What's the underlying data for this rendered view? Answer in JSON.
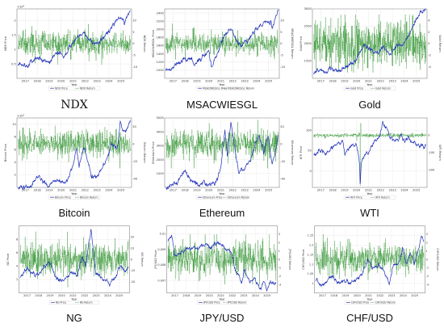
{
  "colors": {
    "price": "#1f2fb8",
    "return": "#1f8a1f",
    "grid": "#dcdcdc",
    "axis": "#444444"
  },
  "chart_data": [
    {
      "type": "line",
      "caption": "NDX",
      "caption_style": "serif",
      "xlabel": "Year",
      "ylabel_left": "NDX Price",
      "ylabel_right": "NDX Return",
      "x_ticks": [
        "2017",
        "2018",
        "2019",
        "2020",
        "2021",
        "2022",
        "2023",
        "2024",
        "2025"
      ],
      "xlim": [
        2016.3,
        2025.9
      ],
      "ylim_left": [
        0,
        2.4
      ],
      "ylim_right": [
        -15,
        15
      ],
      "yticks_left": [
        "0.5",
        "1",
        "1.5",
        "2"
      ],
      "yticks_right": [
        "-10",
        "-5",
        "0",
        "5",
        "10"
      ],
      "left_exponent": "×10⁴",
      "legend": [
        "NDX Price",
        "NDX Return"
      ],
      "price_anchors": [
        [
          2016.4,
          0.45
        ],
        [
          2017.0,
          0.5
        ],
        [
          2017.6,
          0.62
        ],
        [
          2018.1,
          0.7
        ],
        [
          2018.9,
          0.62
        ],
        [
          2019.5,
          0.78
        ],
        [
          2020.0,
          0.9
        ],
        [
          2020.2,
          0.75
        ],
        [
          2020.6,
          1.05
        ],
        [
          2021.0,
          1.28
        ],
        [
          2021.9,
          1.62
        ],
        [
          2022.3,
          1.35
        ],
        [
          2022.8,
          1.12
        ],
        [
          2023.3,
          1.32
        ],
        [
          2023.9,
          1.62
        ],
        [
          2024.5,
          1.95
        ],
        [
          2025.1,
          2.1
        ],
        [
          2025.3,
          1.85
        ],
        [
          2025.8,
          2.35
        ]
      ],
      "return_center": 0,
      "return_sigma": 1.6,
      "return_max": 9
    },
    {
      "type": "line",
      "caption": "MSACWIESGL",
      "caption_style": "sans",
      "xlabel": "Year",
      "ylabel_left": "MSACWIESGL Price",
      "ylabel_right": "MSACWIESGL Return",
      "x_ticks": [
        "2017",
        "2018",
        "2019",
        "2020",
        "2021",
        "2022",
        "2023",
        "2024",
        "2025"
      ],
      "xlim": [
        2016.3,
        2025.9
      ],
      "ylim_left": [
        800,
        2500
      ],
      "ylim_right": [
        -15,
        15
      ],
      "yticks_left": [
        "1000",
        "1200",
        "1400",
        "1600",
        "1800",
        "2000",
        "2200",
        "2400"
      ],
      "yticks_right": [
        "-10",
        "-5",
        "0",
        "5",
        "10"
      ],
      "legend": [
        "MSACWIESGL Price",
        "MSACWIESGL Return"
      ],
      "price_anchors": [
        [
          2016.4,
          1000
        ],
        [
          2017.0,
          1080
        ],
        [
          2017.9,
          1300
        ],
        [
          2018.3,
          1280
        ],
        [
          2018.9,
          1150
        ],
        [
          2019.5,
          1350
        ],
        [
          2020.0,
          1500
        ],
        [
          2020.2,
          1050
        ],
        [
          2020.7,
          1450
        ],
        [
          2021.0,
          1700
        ],
        [
          2021.9,
          2000
        ],
        [
          2022.4,
          1650
        ],
        [
          2022.8,
          1600
        ],
        [
          2023.4,
          1800
        ],
        [
          2023.9,
          1950
        ],
        [
          2024.6,
          2150
        ],
        [
          2025.2,
          2250
        ],
        [
          2025.3,
          2000
        ],
        [
          2025.8,
          2450
        ]
      ],
      "return_center": 0,
      "return_sigma": 1.3,
      "return_max": 9
    },
    {
      "type": "line",
      "caption": "Gold",
      "caption_style": "sans",
      "xlabel": "Year",
      "ylabel_left": "Gold Price",
      "ylabel_right": "Gold Return",
      "x_ticks": [
        "2017",
        "2018",
        "2019",
        "2020",
        "2021",
        "2022",
        "2023",
        "2024",
        "2025"
      ],
      "xlim": [
        2016.3,
        2025.9
      ],
      "ylim_left": [
        1000,
        3000
      ],
      "ylim_right": [
        -6,
        6
      ],
      "yticks_left": [
        "1500",
        "2000",
        "2500",
        "3000"
      ],
      "yticks_right": [
        "-4",
        "-2",
        "0",
        "2",
        "4"
      ],
      "legend": [
        "Gold Price",
        "Gold Return"
      ],
      "price_anchors": [
        [
          2016.4,
          1200
        ],
        [
          2017.0,
          1220
        ],
        [
          2017.8,
          1300
        ],
        [
          2018.6,
          1200
        ],
        [
          2019.4,
          1400
        ],
        [
          2020.0,
          1550
        ],
        [
          2020.6,
          2000
        ],
        [
          2021.0,
          1800
        ],
        [
          2021.8,
          1800
        ],
        [
          2022.3,
          1900
        ],
        [
          2022.8,
          1650
        ],
        [
          2023.4,
          1950
        ],
        [
          2023.9,
          2000
        ],
        [
          2024.4,
          2300
        ],
        [
          2024.9,
          2650
        ],
        [
          2025.4,
          3000
        ],
        [
          2025.8,
          2950
        ]
      ],
      "return_center": 0,
      "return_sigma": 1.2,
      "return_max": 5
    },
    {
      "type": "line",
      "caption": "Bitcoin",
      "caption_style": "sans",
      "xlabel": "Year",
      "ylabel_left": "Bitcoin Price",
      "ylabel_right": "Bitcoin Return",
      "x_ticks": [
        "2017",
        "2018",
        "2019",
        "2020",
        "2021",
        "2022",
        "2023",
        "2024",
        "2025"
      ],
      "xlim": [
        2016.3,
        2025.9
      ],
      "ylim_left": [
        0,
        11
      ],
      "ylim_right": [
        -50,
        30
      ],
      "yticks_left": [
        "2",
        "4",
        "6",
        "8",
        "10"
      ],
      "yticks_right": [
        "-40",
        "-20",
        "0",
        "20"
      ],
      "left_exponent": "×10⁴",
      "legend": [
        "Bitcoin Price",
        "Bitcoin Return"
      ],
      "price_anchors": [
        [
          2016.4,
          0.05
        ],
        [
          2017.5,
          0.3
        ],
        [
          2017.95,
          1.9
        ],
        [
          2018.5,
          0.7
        ],
        [
          2019.0,
          0.35
        ],
        [
          2019.5,
          1.1
        ],
        [
          2020.0,
          0.75
        ],
        [
          2020.5,
          1.0
        ],
        [
          2021.0,
          3.5
        ],
        [
          2021.3,
          6.0
        ],
        [
          2021.5,
          3.3
        ],
        [
          2021.9,
          6.6
        ],
        [
          2022.5,
          2.0
        ],
        [
          2022.9,
          1.7
        ],
        [
          2023.5,
          3.0
        ],
        [
          2024.2,
          6.9
        ],
        [
          2024.7,
          6.0
        ],
        [
          2024.95,
          10.0
        ],
        [
          2025.3,
          8.3
        ],
        [
          2025.8,
          11.0
        ]
      ],
      "return_center": 0,
      "return_sigma": 4.5,
      "return_max": 28
    },
    {
      "type": "line",
      "caption": "Ethereum",
      "caption_style": "sans",
      "xlabel": "Year",
      "ylabel_left": "Ethereum Price",
      "ylabel_right": "Ethereum Return",
      "x_ticks": [
        "2017",
        "2018",
        "2019",
        "2020",
        "2021",
        "2022",
        "2023",
        "2024",
        "2025"
      ],
      "xlim": [
        2016.3,
        2025.9
      ],
      "ylim_left": [
        0,
        5000
      ],
      "ylim_right": [
        -50,
        30
      ],
      "yticks_left": [
        "1000",
        "2000",
        "3000",
        "4000",
        "5000"
      ],
      "yticks_right": [
        "-40",
        "-20",
        "0",
        "20"
      ],
      "legend": [
        "Ethereum Price",
        "Ethereum Return"
      ],
      "price_anchors": [
        [
          2016.4,
          10
        ],
        [
          2017.4,
          300
        ],
        [
          2018.0,
          1300
        ],
        [
          2018.5,
          450
        ],
        [
          2019.0,
          120
        ],
        [
          2019.5,
          300
        ],
        [
          2020.0,
          150
        ],
        [
          2020.6,
          400
        ],
        [
          2021.0,
          1300
        ],
        [
          2021.35,
          4100
        ],
        [
          2021.55,
          2000
        ],
        [
          2021.85,
          4700
        ],
        [
          2022.5,
          1100
        ],
        [
          2022.9,
          1250
        ],
        [
          2023.5,
          1900
        ],
        [
          2024.2,
          3900
        ],
        [
          2024.6,
          2400
        ],
        [
          2024.95,
          3800
        ],
        [
          2025.3,
          1600
        ],
        [
          2025.6,
          2600
        ],
        [
          2025.8,
          3700
        ]
      ],
      "return_center": 0,
      "return_sigma": 5.0,
      "return_max": 28
    },
    {
      "type": "line",
      "caption": "WTI",
      "caption_style": "sans",
      "xlabel": "Year",
      "ylabel_left": "WTI Price",
      "ylabel_right": "WTI Return",
      "x_ticks": [
        "2017",
        "2018",
        "2019",
        "2020",
        "2021",
        "2022",
        "2023",
        "2024",
        "2025"
      ],
      "xlim": [
        2016.3,
        2025.9
      ],
      "ylim_left": [
        -40,
        130
      ],
      "ylim_right": [
        -300,
        100
      ],
      "yticks_left": [
        "0",
        "50",
        "100"
      ],
      "yticks_right": [
        "-200",
        "-100",
        "0"
      ],
      "legend": [
        "WTI Price",
        "WTI Return"
      ],
      "price_anchors": [
        [
          2016.4,
          40
        ],
        [
          2016.9,
          52
        ],
        [
          2017.5,
          45
        ],
        [
          2018.0,
          63
        ],
        [
          2018.8,
          75
        ],
        [
          2018.99,
          45
        ],
        [
          2019.5,
          58
        ],
        [
          2020.0,
          60
        ],
        [
          2020.25,
          20
        ],
        [
          2020.3,
          -37
        ],
        [
          2020.4,
          25
        ],
        [
          2020.9,
          45
        ],
        [
          2021.5,
          72
        ],
        [
          2021.9,
          78
        ],
        [
          2022.2,
          120
        ],
        [
          2022.6,
          95
        ],
        [
          2022.99,
          78
        ],
        [
          2023.5,
          72
        ],
        [
          2023.7,
          90
        ],
        [
          2024.0,
          73
        ],
        [
          2024.3,
          85
        ],
        [
          2024.8,
          70
        ],
        [
          2025.3,
          62
        ],
        [
          2025.8,
          65
        ]
      ],
      "return_center": 0,
      "return_sigma": 3.5,
      "return_max": 50,
      "return_spikes": [
        [
          2020.3,
          -290
        ],
        [
          2020.35,
          70
        ]
      ]
    },
    {
      "type": "line",
      "caption": "NG",
      "caption_style": "sans",
      "xlabel": "Year",
      "ylabel_left": "NG Price",
      "ylabel_right": "NG Return",
      "x_ticks": [
        "2017",
        "2018",
        "2019",
        "2020",
        "2021",
        "2022",
        "2023",
        "2024",
        "2025"
      ],
      "xlim": [
        2016.3,
        2025.9
      ],
      "ylim_left": [
        0,
        10
      ],
      "ylim_right": [
        -30,
        30
      ],
      "yticks_left": [
        "2",
        "4",
        "6",
        "8"
      ],
      "yticks_right": [
        "-20",
        "-10",
        "0",
        "10",
        "20"
      ],
      "legend": [
        "NG Price",
        "NG Return"
      ],
      "price_anchors": [
        [
          2016.4,
          2.2
        ],
        [
          2016.9,
          3.5
        ],
        [
          2017.5,
          3.0
        ],
        [
          2018.0,
          2.8
        ],
        [
          2018.9,
          4.5
        ],
        [
          2019.5,
          2.5
        ],
        [
          2020.2,
          1.7
        ],
        [
          2020.8,
          3.0
        ],
        [
          2021.4,
          3.0
        ],
        [
          2021.8,
          5.5
        ],
        [
          2022.1,
          4.0
        ],
        [
          2022.55,
          9.5
        ],
        [
          2022.75,
          6.5
        ],
        [
          2022.95,
          3.5
        ],
        [
          2023.4,
          2.2
        ],
        [
          2024.2,
          1.6
        ],
        [
          2024.7,
          2.5
        ],
        [
          2025.1,
          4.0
        ],
        [
          2025.5,
          3.2
        ],
        [
          2025.8,
          3.8
        ]
      ],
      "return_center": 0,
      "return_sigma": 4.0,
      "return_max": 25
    },
    {
      "type": "line",
      "caption": "JPY/USD",
      "caption_style": "sans",
      "xlabel": "Year",
      "ylabel_left": "JPY/USD Price",
      "ylabel_right": "JPY/USD Return",
      "x_ticks": [
        "2017",
        "2018",
        "2019",
        "2020",
        "2021",
        "2022",
        "2023",
        "2024",
        "2025"
      ],
      "xlim": [
        2016.3,
        2025.9
      ],
      "ylim_left": [
        0.0062,
        0.0105
      ],
      "ylim_right": [
        -4,
        4
      ],
      "yticks_left": [
        "0.007",
        "0.008",
        "0.009",
        "0.01"
      ],
      "yticks_right": [
        "-3",
        "-2",
        "-1",
        "0",
        "1",
        "2",
        "3"
      ],
      "left_exponent": "",
      "legend": [
        "JPY/USD Price",
        "JPY/USD Return"
      ],
      "price_anchors": [
        [
          2016.4,
          0.0095
        ],
        [
          2016.75,
          0.0099
        ],
        [
          2017.0,
          0.0086
        ],
        [
          2017.8,
          0.0089
        ],
        [
          2018.5,
          0.009
        ],
        [
          2019.0,
          0.0091
        ],
        [
          2019.7,
          0.0093
        ],
        [
          2020.2,
          0.0091
        ],
        [
          2020.9,
          0.0096
        ],
        [
          2021.4,
          0.0091
        ],
        [
          2021.9,
          0.0088
        ],
        [
          2022.3,
          0.0078
        ],
        [
          2022.8,
          0.0068
        ],
        [
          2023.0,
          0.0077
        ],
        [
          2023.5,
          0.007
        ],
        [
          2024.0,
          0.0071
        ],
        [
          2024.5,
          0.0064
        ],
        [
          2024.7,
          0.007
        ],
        [
          2025.0,
          0.0064
        ],
        [
          2025.4,
          0.0069
        ],
        [
          2025.8,
          0.0068
        ]
      ],
      "return_center": 0,
      "return_sigma": 0.6,
      "return_max": 3
    },
    {
      "type": "line",
      "caption": "CHF/USD",
      "caption_style": "sans",
      "xlabel": "Year",
      "ylabel_left": "CHF/USD Price",
      "ylabel_right": "CHF/USD Return",
      "x_ticks": [
        "2017",
        "2018",
        "2019",
        "2020",
        "2021",
        "2022",
        "2023",
        "2024",
        "2025"
      ],
      "xlim": [
        2016.3,
        2025.9
      ],
      "ylim_left": [
        0.95,
        1.3
      ],
      "ylim_right": [
        -4,
        4
      ],
      "yticks_left": [
        "1",
        "1.05",
        "1.1",
        "1.15",
        "1.2",
        "1.25"
      ],
      "yticks_right": [
        "-3",
        "-2",
        "-1",
        "0",
        "1",
        "2",
        "3"
      ],
      "legend": [
        "CHF/USD Price",
        "CHF/USD Return"
      ],
      "price_anchors": [
        [
          2016.4,
          1.01
        ],
        [
          2017.0,
          0.98
        ],
        [
          2017.7,
          1.04
        ],
        [
          2018.3,
          1.0
        ],
        [
          2018.9,
          1.01
        ],
        [
          2019.5,
          1.0
        ],
        [
          2020.0,
          1.03
        ],
        [
          2020.4,
          1.04
        ],
        [
          2020.9,
          1.13
        ],
        [
          2021.3,
          1.07
        ],
        [
          2021.9,
          1.09
        ],
        [
          2022.3,
          1.07
        ],
        [
          2022.8,
          1.0
        ],
        [
          2023.2,
          1.09
        ],
        [
          2023.7,
          1.12
        ],
        [
          2023.95,
          1.18
        ],
        [
          2024.3,
          1.1
        ],
        [
          2024.6,
          1.15
        ],
        [
          2024.99,
          1.11
        ],
        [
          2025.3,
          1.17
        ],
        [
          2025.6,
          1.25
        ],
        [
          2025.8,
          1.22
        ]
      ],
      "return_center": 0,
      "return_sigma": 0.55,
      "return_max": 3
    }
  ]
}
